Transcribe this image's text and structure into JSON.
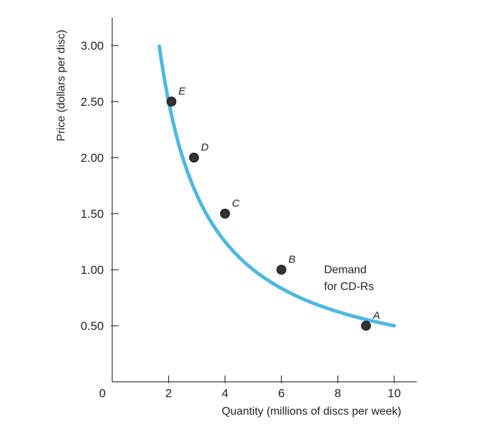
{
  "chart_data": {
    "type": "line",
    "xlabel": "Quantity (millions of discs per week)",
    "ylabel": "Price (dollars per disc)",
    "origin_label": "0",
    "xlim": [
      0,
      10.8
    ],
    "ylim": [
      0,
      3.25
    ],
    "x_ticks": [
      2,
      4,
      6,
      8,
      10
    ],
    "x_tick_labels": [
      "2",
      "4",
      "6",
      "8",
      "10"
    ],
    "y_ticks": [
      0.5,
      1.0,
      1.5,
      2.0,
      2.5,
      3.0
    ],
    "y_tick_labels": [
      "0.50",
      "1.00",
      "1.50",
      "2.00",
      "2.50",
      "3.00"
    ],
    "grid": false,
    "curve_color": "#4db8e0",
    "point_color": "#333333",
    "curve_range": [
      1.67,
      10
    ],
    "curve_k": 5,
    "points": [
      {
        "label": "A",
        "x": 9,
        "y": 0.5
      },
      {
        "label": "B",
        "x": 6,
        "y": 1.0
      },
      {
        "label": "C",
        "x": 4,
        "y": 1.5
      },
      {
        "label": "D",
        "x": 2.9,
        "y": 2.0
      },
      {
        "label": "E",
        "x": 2.1,
        "y": 2.5
      }
    ],
    "annotation": [
      "Demand",
      "for CD-Rs"
    ]
  }
}
